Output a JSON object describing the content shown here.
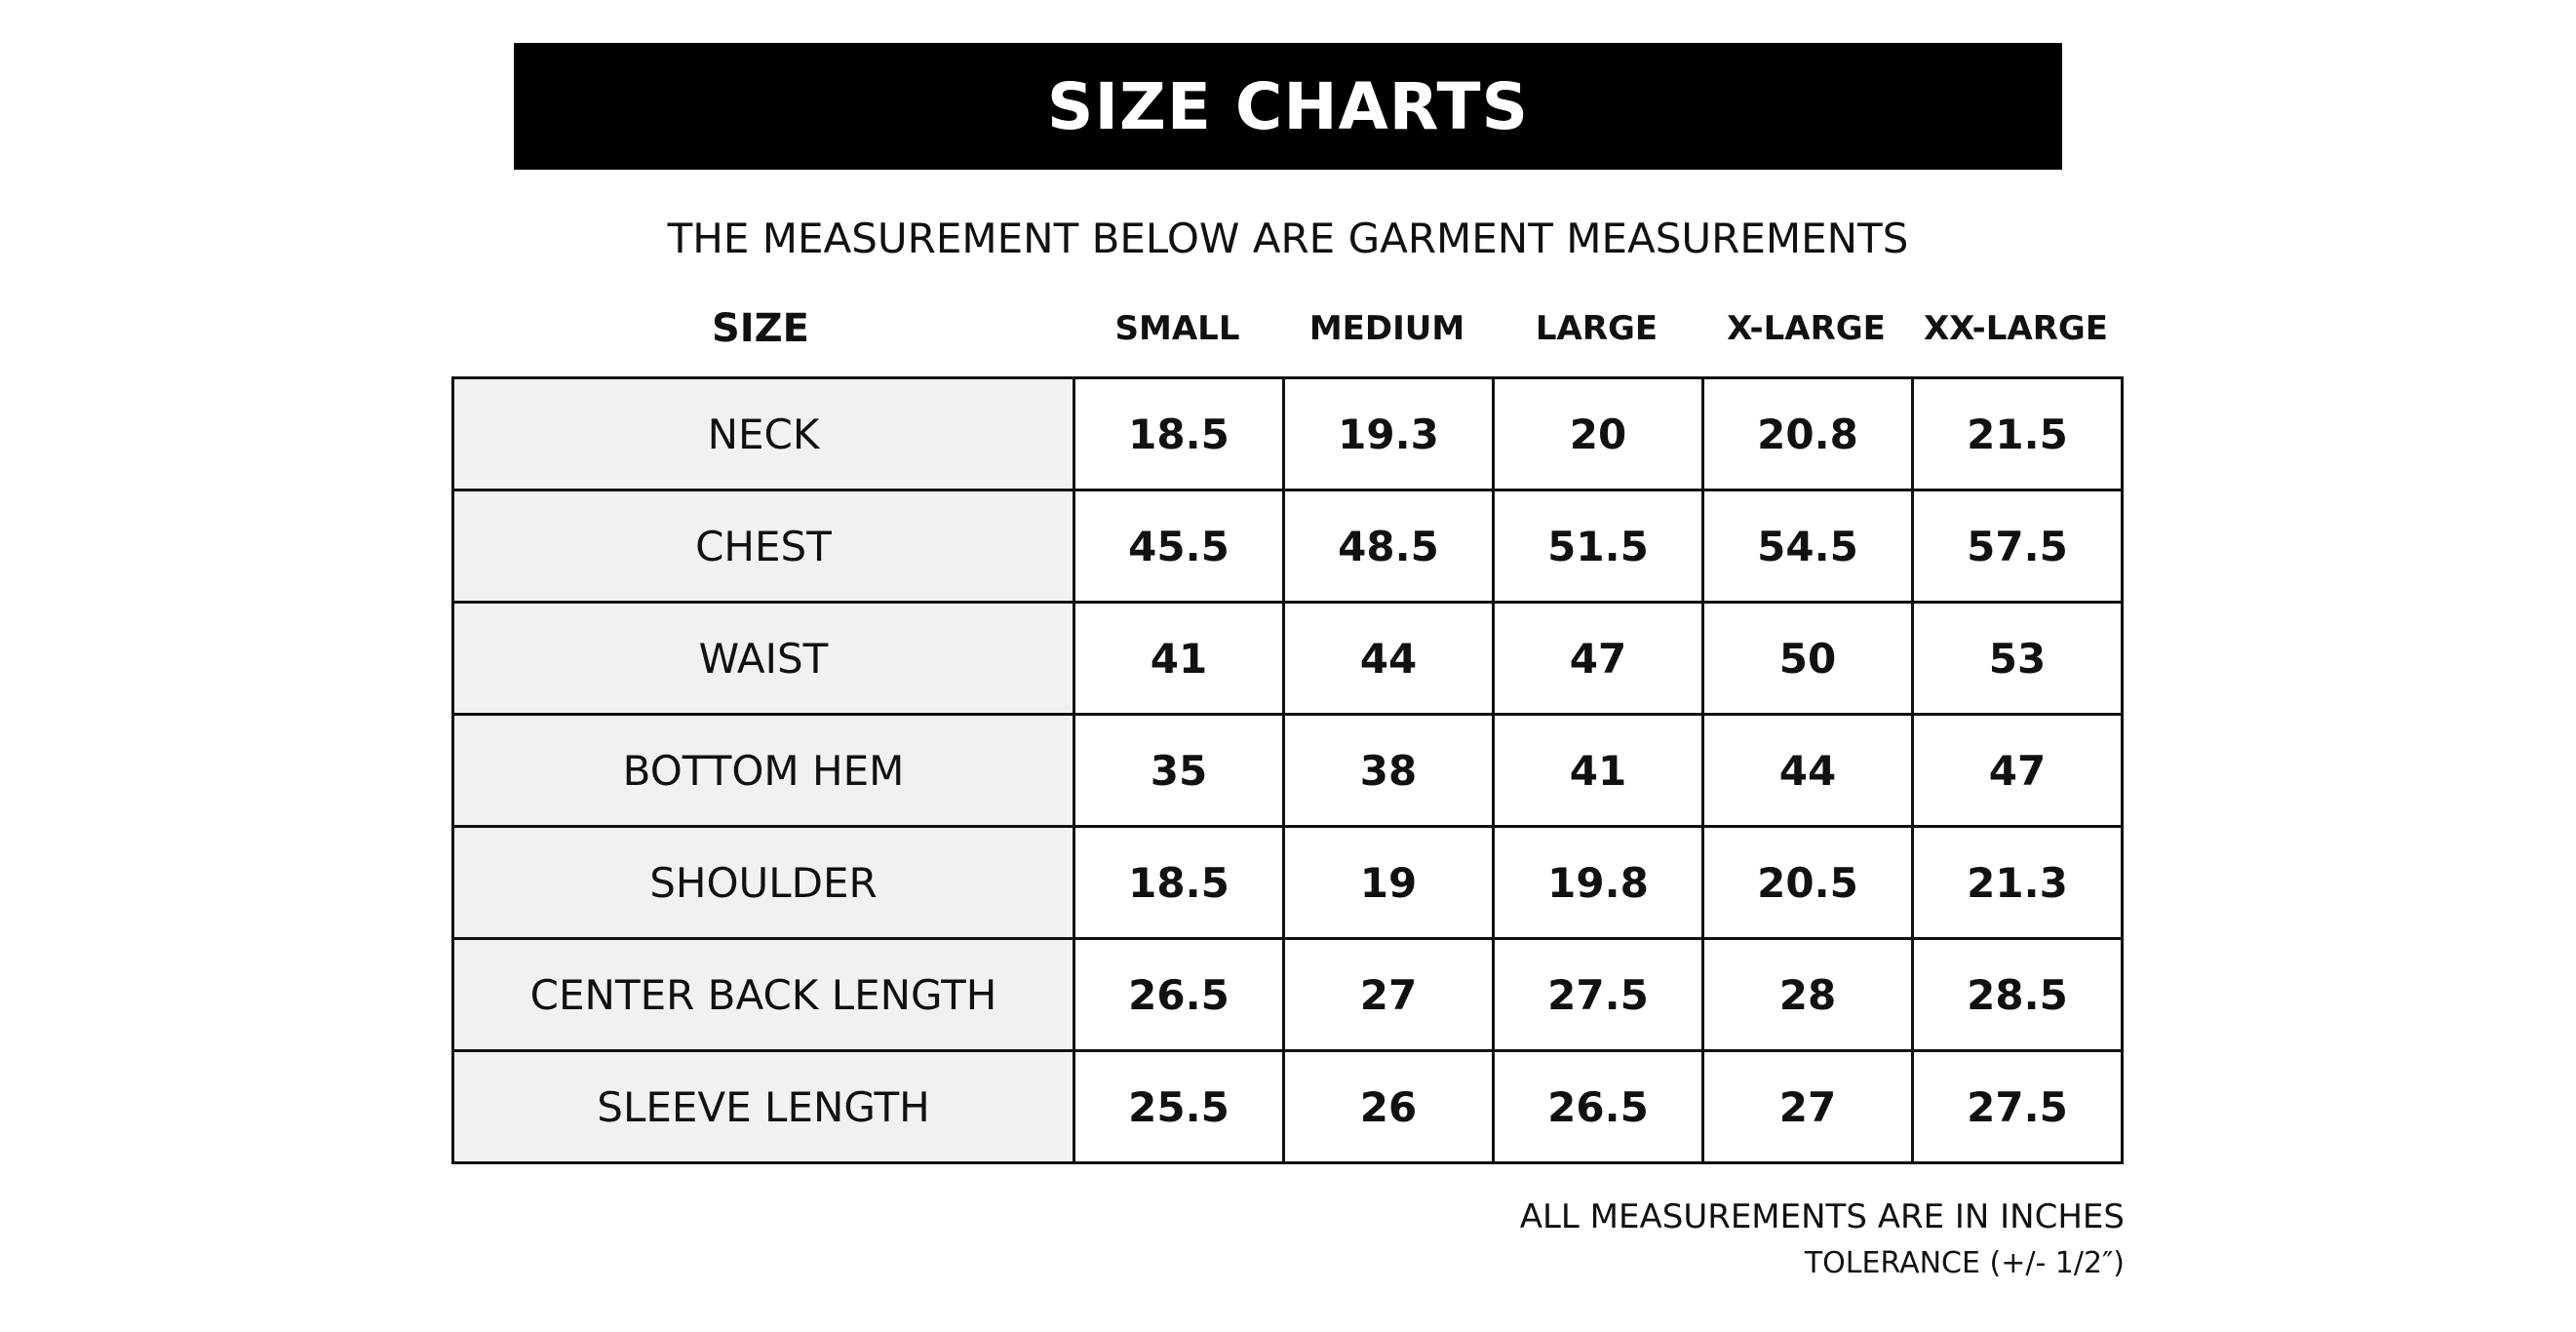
{
  "title": "SIZE CHARTS",
  "subtitle": "THE MEASUREMENT BELOW ARE GARMENT MEASUREMENTS",
  "table": {
    "header": {
      "label": "SIZE",
      "sizes": [
        "SMALL",
        "MEDIUM",
        "LARGE",
        "X-LARGE",
        "XX-LARGE"
      ]
    },
    "rows": [
      {
        "label": "NECK",
        "values": [
          18.5,
          19.3,
          20,
          20.8,
          21.5
        ]
      },
      {
        "label": "CHEST",
        "values": [
          45.5,
          48.5,
          51.5,
          54.5,
          57.5
        ]
      },
      {
        "label": "WAIST",
        "values": [
          41,
          44,
          47,
          50,
          53
        ]
      },
      {
        "label": "BOTTOM HEM",
        "values": [
          35,
          38,
          41,
          44,
          47
        ]
      },
      {
        "label": "SHOULDER",
        "values": [
          18.5,
          19,
          19.8,
          20.5,
          21.3
        ]
      },
      {
        "label": "CENTER BACK LENGTH",
        "values": [
          26.5,
          27,
          27.5,
          28,
          28.5
        ]
      },
      {
        "label": "SLEEVE LENGTH",
        "values": [
          25.5,
          26,
          26.5,
          27,
          27.5
        ]
      }
    ]
  },
  "notes": [
    "ALL MEASUREMENTS ARE IN INCHES",
    "TOLERANCE (+/- 1/2″)"
  ]
}
